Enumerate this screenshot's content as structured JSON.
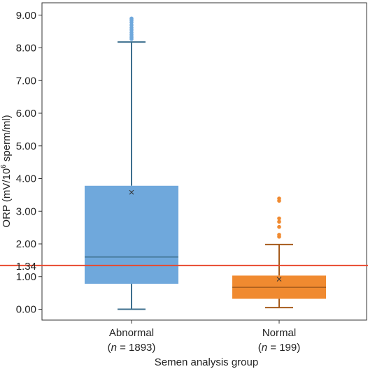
{
  "chart_data": {
    "type": "box",
    "title": "",
    "xlabel": "Semen analysis group",
    "ylabel_main": "ORP (mV/10",
    "ylabel_sup": "6",
    "ylabel_tail": " sperm/ml)",
    "ylim": [
      -0.1,
      9.3
    ],
    "yticks": [
      0,
      1,
      2,
      3,
      4,
      5,
      6,
      7,
      8,
      9
    ],
    "ytick_labels": [
      "0.00",
      "1.00",
      "2.00",
      "3.00",
      "4.00",
      "5.00",
      "6.00",
      "7.00",
      "8.00",
      "9.00"
    ],
    "reference_line": {
      "value": 1.34,
      "label": "1.34",
      "color": "#e8492f"
    },
    "categories": [
      {
        "label": "Abnormal",
        "n_prefix": "(",
        "n_symbol": "n",
        "n_text": " = 1893)"
      },
      {
        "label": "Normal",
        "n_prefix": "(",
        "n_symbol": "n",
        "n_text": " = 199)"
      }
    ],
    "series": [
      {
        "category": "Abnormal",
        "color": "#6fa8dc",
        "dark": "#3d6f8e",
        "min": 0.0,
        "q1": 0.78,
        "median": 1.6,
        "q3": 3.78,
        "max": 8.18,
        "mean": 3.58,
        "outliers": [
          8.27,
          8.33,
          8.4,
          8.47,
          8.55,
          8.62,
          8.7,
          8.78,
          8.85,
          8.9
        ]
      },
      {
        "category": "Normal",
        "color": "#f08a30",
        "dark": "#a65b1c",
        "min": 0.05,
        "q1": 0.32,
        "median": 0.67,
        "q3": 1.03,
        "max": 1.98,
        "mean": 0.92,
        "outliers": [
          2.22,
          2.28,
          2.52,
          2.68,
          2.78,
          3.32,
          3.39
        ]
      }
    ]
  }
}
